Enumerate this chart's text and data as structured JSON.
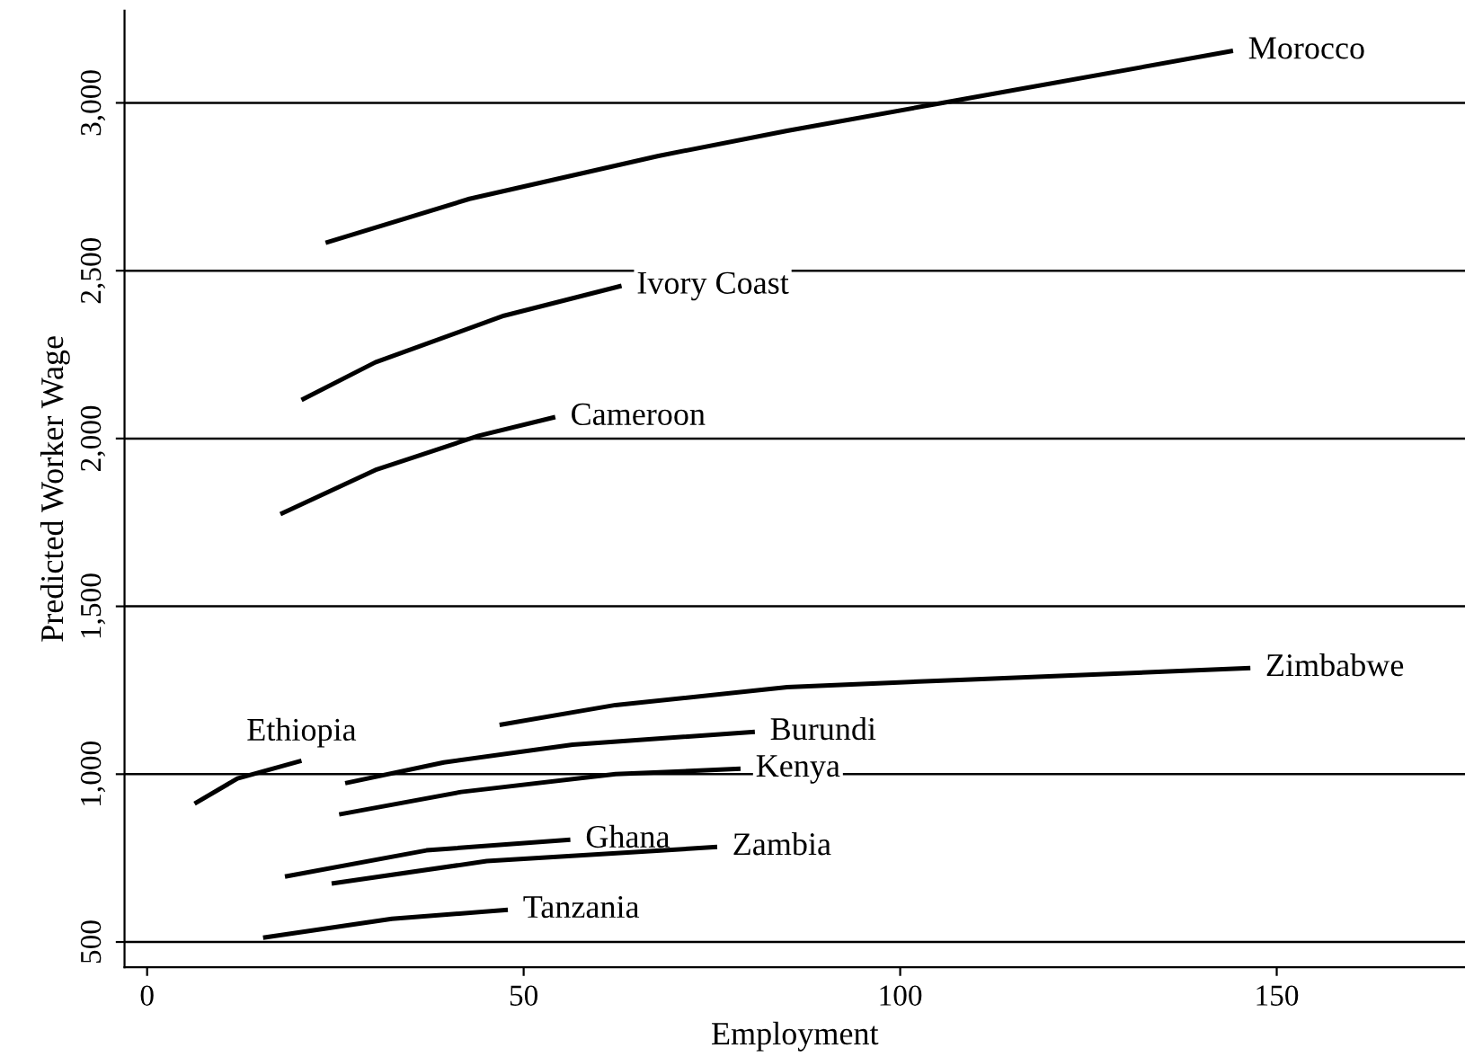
{
  "chart_data": {
    "type": "line",
    "xlabel": "Employment",
    "ylabel": "Predicted Worker Wage",
    "xlim": [
      -3,
      175
    ],
    "ylim": [
      425,
      3275
    ],
    "xticks": [
      0,
      50,
      100,
      150
    ],
    "yticks": [
      {
        "value": 500,
        "label": "500"
      },
      {
        "value": 1000,
        "label": "1,000"
      },
      {
        "value": 1500,
        "label": "1,500"
      },
      {
        "value": 2000,
        "label": "2,000"
      },
      {
        "value": 2500,
        "label": "2,500"
      },
      {
        "value": 3000,
        "label": "3,000"
      }
    ],
    "grid": "y",
    "legend": false,
    "marker": "none",
    "line_style": "solid",
    "series": [
      {
        "name": "Morocco",
        "color": "#000000",
        "x": [
          23.7,
          42.8,
          67.9,
          85,
          105.6,
          144.2
        ],
        "values": [
          2583,
          2714,
          2842,
          2917,
          3000,
          3155
        ]
      },
      {
        "name": "Ivory Coast",
        "color": "#000000",
        "x": [
          20.5,
          30.3,
          47.4,
          63
        ],
        "values": [
          2115,
          2227,
          2366,
          2455
        ]
      },
      {
        "name": "Cameroon",
        "color": "#000000",
        "x": [
          17.7,
          30.3,
          44,
          54.2
        ],
        "values": [
          1775,
          1906,
          2008,
          2064
        ]
      },
      {
        "name": "Zimbabwe",
        "color": "#000000",
        "x": [
          46.8,
          62.2,
          85,
          107.9,
          146.5
        ],
        "values": [
          1147,
          1206,
          1259,
          1281,
          1316
        ]
      },
      {
        "name": "Burundi",
        "color": "#000000",
        "x": [
          26.3,
          39.4,
          56.5,
          80.7
        ],
        "values": [
          973,
          1035,
          1088,
          1126
        ]
      },
      {
        "name": "Ethiopia",
        "color": "#000000",
        "x": [
          6.3,
          12,
          20.5
        ],
        "values": [
          912,
          987,
          1040
        ]
      },
      {
        "name": "Kenya",
        "color": "#000000",
        "x": [
          25.5,
          41.7,
          62.2,
          78.8
        ],
        "values": [
          880,
          947,
          1000,
          1016
        ]
      },
      {
        "name": "Ghana",
        "color": "#000000",
        "x": [
          18.3,
          37.1,
          56.2
        ],
        "values": [
          695,
          773,
          805
        ]
      },
      {
        "name": "Zambia",
        "color": "#000000",
        "x": [
          24.5,
          45.1,
          75.7
        ],
        "values": [
          674,
          741,
          783
        ]
      },
      {
        "name": "Tanzania",
        "color": "#000000",
        "x": [
          15.4,
          32.5,
          47.9
        ],
        "values": [
          513,
          569,
          596
        ]
      }
    ]
  }
}
